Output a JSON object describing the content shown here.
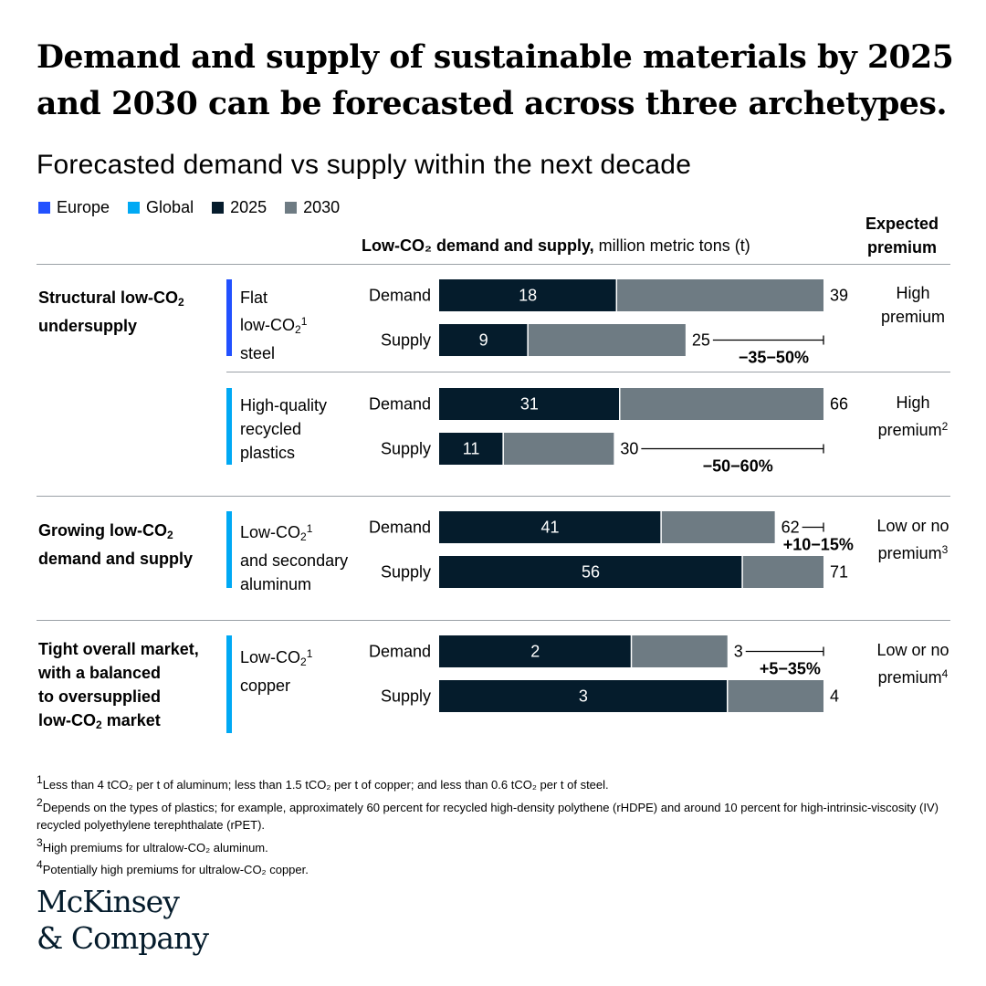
{
  "title": "Demand and supply of sustainable materials by 2025 and 2030 can be forecasted across three archetypes.",
  "subtitle": "Forecasted demand vs supply within the next decade",
  "colors": {
    "europe": "#2251ff",
    "global": "#00a9f4",
    "y2025": "#051c2c",
    "y2030": "#6e7b83"
  },
  "legend": [
    "Europe",
    "Global",
    "2025",
    "2030"
  ],
  "column_header": {
    "bold": "Low-CO₂ demand and supply,",
    "rest": " million metric tons (t)"
  },
  "premium_header": [
    "Expected",
    "premium"
  ],
  "chart_data": {
    "type": "bar",
    "orientation": "horizontal",
    "stacked": true,
    "xlabel": "Low-CO₂ demand and supply, million metric tons (t)",
    "series_names": [
      "2025",
      "2030"
    ],
    "groups": [
      {
        "archetype": "Structural low-CO₂ undersupply",
        "material": "Flat low-CO₂ steel",
        "region": "europe",
        "premium": "High premium",
        "bars": [
          {
            "label": "Demand",
            "value_2025": 18,
            "value_2030": 39
          },
          {
            "label": "Supply",
            "value_2025": 9,
            "value_2030": 25
          }
        ],
        "gap": "−35−50%",
        "gap_on": "supply"
      },
      {
        "archetype": "",
        "material": "High-quality recycled plastics",
        "region": "global",
        "premium": "High premium",
        "bars": [
          {
            "label": "Demand",
            "value_2025": 31,
            "value_2030": 66
          },
          {
            "label": "Supply",
            "value_2025": 11,
            "value_2030": 30
          }
        ],
        "gap": "−50−60%",
        "gap_on": "supply"
      },
      {
        "archetype": "Growing low-CO₂ demand and supply",
        "material": "Low-CO₂ and secondary aluminum",
        "region": "global",
        "premium": "Low or no premium",
        "bars": [
          {
            "label": "Demand",
            "value_2025": 41,
            "value_2030": 62
          },
          {
            "label": "Supply",
            "value_2025": 56,
            "value_2030": 71
          }
        ],
        "gap": "+10−15%",
        "gap_on": "demand"
      },
      {
        "archetype": "Tight overall market, with a balanced to oversupplied low-CO₂ market",
        "material": "Low-CO₂ copper",
        "region": "global",
        "premium": "Low or no premium",
        "bars": [
          {
            "label": "Demand",
            "value_2025": 2,
            "value_2030": 3
          },
          {
            "label": "Supply",
            "value_2025": 3,
            "value_2030": 4
          }
        ],
        "gap": "+5−35%",
        "gap_on": "demand"
      }
    ]
  },
  "footnotes": [
    "Less than 4 tCO₂ per t of aluminum; less than 1.5 tCO₂ per t of copper; and less than 0.6 tCO₂ per t of steel.",
    "Depends on the types of plastics; for example, approximately 60 percent for recycled high-density polythene (rHDPE) and around 10 percent for high-intrinsic-viscosity (IV) recycled polyethylene terephthalate (rPET).",
    "High premiums for ultralow-CO₂ aluminum.",
    "Potentially high premiums for ultralow-CO₂ copper."
  ],
  "logo": [
    "McKinsey",
    "& Company"
  ]
}
